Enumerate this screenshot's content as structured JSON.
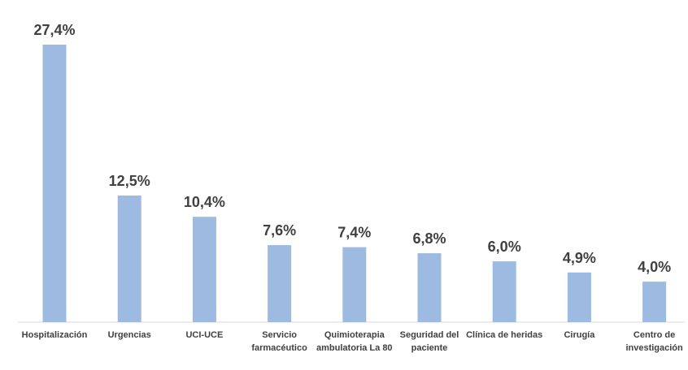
{
  "chart_data": {
    "type": "bar",
    "categories": [
      [
        "Hospitalización"
      ],
      [
        "Urgencias"
      ],
      [
        "UCI-UCE"
      ],
      [
        "Servicio",
        "farmacéutico"
      ],
      [
        "Quimioterapia",
        "ambulatoria La 80"
      ],
      [
        "Seguridad del",
        "paciente"
      ],
      [
        "Clínica de heridas"
      ],
      [
        "Cirugía"
      ],
      [
        "Centro de",
        "investigación"
      ]
    ],
    "values": [
      27.4,
      12.5,
      10.4,
      7.6,
      7.4,
      6.8,
      6.0,
      4.9,
      4.0
    ],
    "data_labels": [
      "27,4%",
      "12,5%",
      "10,4%",
      "7,6%",
      "7,4%",
      "6,8%",
      "6,0%",
      "4,9%",
      "4,0%"
    ],
    "title": "",
    "xlabel": "",
    "ylabel": "",
    "grid": false,
    "legend": "none",
    "colors": {
      "bar": "#9dbbe0",
      "text": "#404040",
      "axis": "#d9d9d9"
    }
  }
}
